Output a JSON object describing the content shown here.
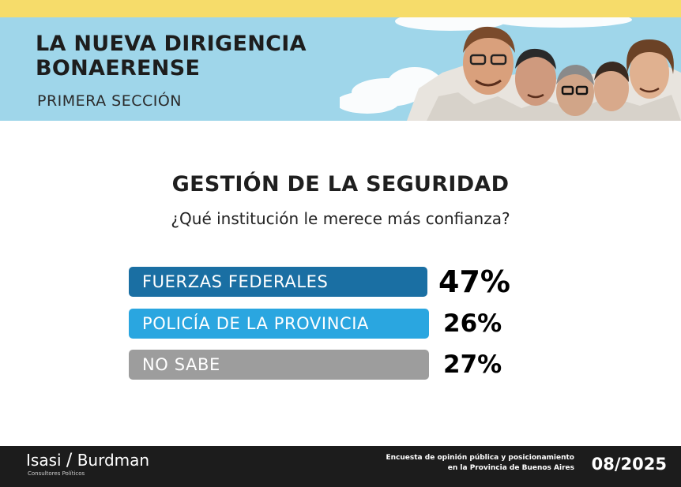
{
  "header": {
    "title_line1": "LA NUEVA DIRIGENCIA",
    "title_line2": "BONAERENSE",
    "subtitle": "PRIMERA SECCIÓN"
  },
  "chart_data": {
    "type": "bar",
    "title": "GESTIÓN DE LA SEGURIDAD",
    "subtitle": "¿Qué institución le merece más confianza?",
    "categories": [
      "FUERZAS FEDERALES",
      "POLICÍA DE LA PROVINCIA",
      "NO SABE"
    ],
    "values": [
      47,
      26,
      27
    ],
    "value_labels": [
      "47%",
      "26%",
      "27%"
    ],
    "colors": [
      "#1a6fa3",
      "#2aa6e0",
      "#9d9d9d"
    ]
  },
  "footer": {
    "brand_left": "Isasi",
    "brand_slash": "/",
    "brand_right": "Burdman",
    "brand_sub": "Consultores Políticos",
    "note_line1": "Encuesta de opinión pública y posicionamiento",
    "note_line2": "en la Provincia de Buenos Aires",
    "date": "08/2025"
  }
}
